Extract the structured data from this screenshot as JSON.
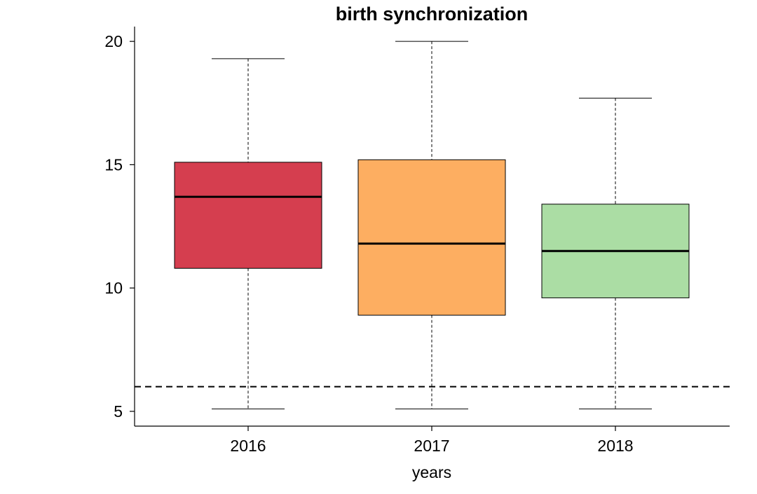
{
  "chart_data": {
    "type": "boxplot",
    "title": "birth synchronization",
    "xlabel": "years",
    "ylabel": "",
    "ylim": [
      4.4,
      20.6
    ],
    "yticks": [
      5,
      10,
      15,
      20
    ],
    "categories": [
      "2016",
      "2017",
      "2018"
    ],
    "boxes": [
      {
        "category": "2016",
        "whisker_low": 5.1,
        "q1": 10.8,
        "median": 13.7,
        "q3": 15.1,
        "whisker_high": 19.3,
        "color": "#d53e4f"
      },
      {
        "category": "2017",
        "whisker_low": 5.1,
        "q1": 8.9,
        "median": 11.8,
        "q3": 15.2,
        "whisker_high": 20.0,
        "color": "#fdae61"
      },
      {
        "category": "2018",
        "whisker_low": 5.1,
        "q1": 9.6,
        "median": 11.5,
        "q3": 13.4,
        "whisker_high": 17.7,
        "color": "#abdda4"
      }
    ],
    "reference_line": {
      "y": 6.0,
      "style": "dashed"
    },
    "grid": false,
    "legend": "none"
  }
}
